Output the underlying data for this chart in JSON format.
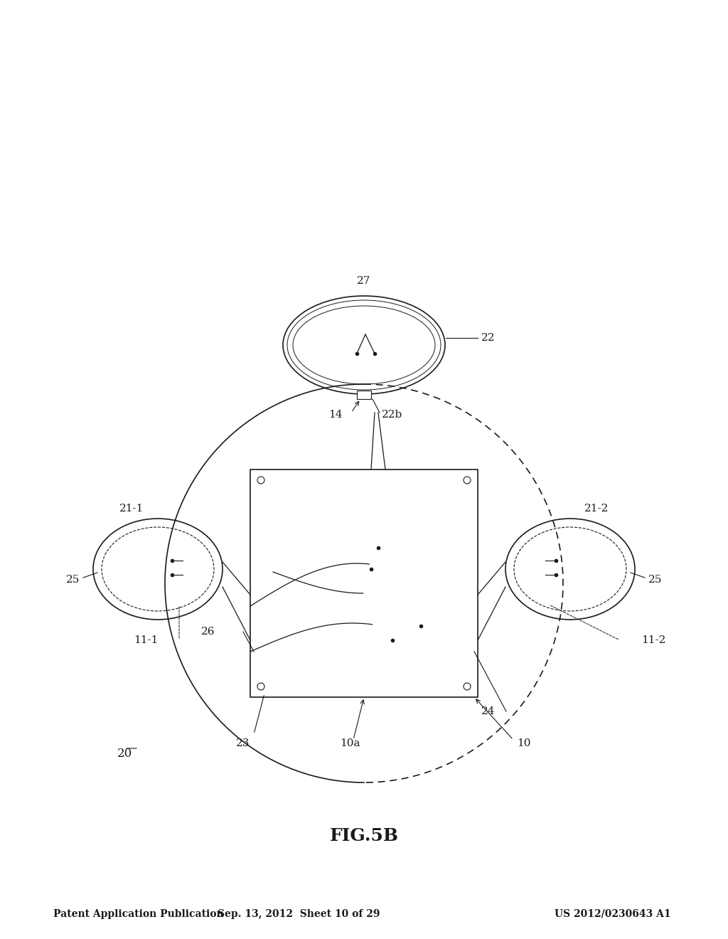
{
  "bg_color": "#ffffff",
  "fig_title": "FIG.5B",
  "header_left": "Patent Application Publication",
  "header_center": "Sep. 13, 2012  Sheet 10 of 29",
  "header_right": "US 2012/0230643 A1",
  "label_20": "20",
  "label_10": "10",
  "label_10a": "10a",
  "label_23": "23",
  "label_24": "24",
  "label_26": "26",
  "label_11_1": "11-1",
  "label_11_2": "11-2",
  "label_25_left": "25",
  "label_25_right": "25",
  "label_21_1": "21-1",
  "label_21_2": "21-2",
  "label_14": "14",
  "label_22b": "22b",
  "label_22": "22",
  "label_27": "27",
  "draw_color": "#1a1a1a",
  "line_width": 1.2
}
